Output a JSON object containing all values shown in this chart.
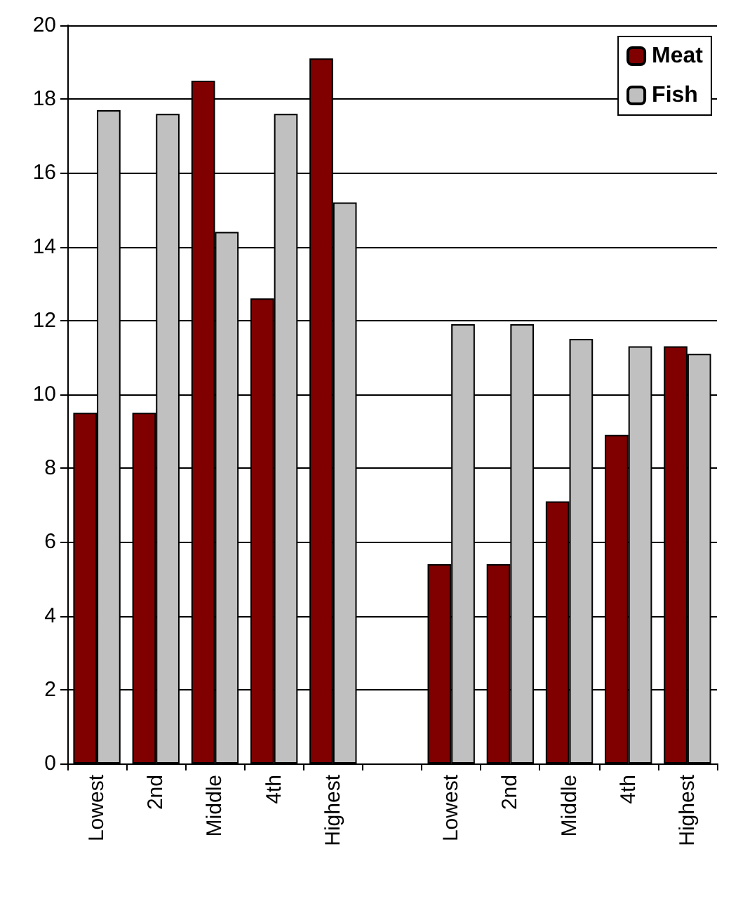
{
  "chart_data": {
    "type": "bar",
    "categories": [
      "Lowest",
      "2nd",
      "Middle",
      "4th",
      "Highest",
      null,
      "Lowest",
      "2nd",
      "Middle",
      "4th",
      "Highest"
    ],
    "series": [
      {
        "name": "Meat",
        "color": "#800000",
        "values": [
          9.5,
          9.5,
          18.5,
          12.6,
          19.1,
          null,
          5.4,
          5.4,
          7.1,
          8.9,
          11.3
        ]
      },
      {
        "name": "Fish",
        "color": "#c0c0c0",
        "values": [
          17.7,
          17.6,
          14.4,
          17.6,
          15.2,
          null,
          11.9,
          11.9,
          11.5,
          11.3,
          11.1
        ]
      }
    ],
    "ylim": [
      0,
      20
    ],
    "yticks": [
      0,
      2,
      4,
      6,
      8,
      10,
      12,
      14,
      16,
      18,
      20
    ],
    "grid": "y",
    "legend": "top right"
  }
}
